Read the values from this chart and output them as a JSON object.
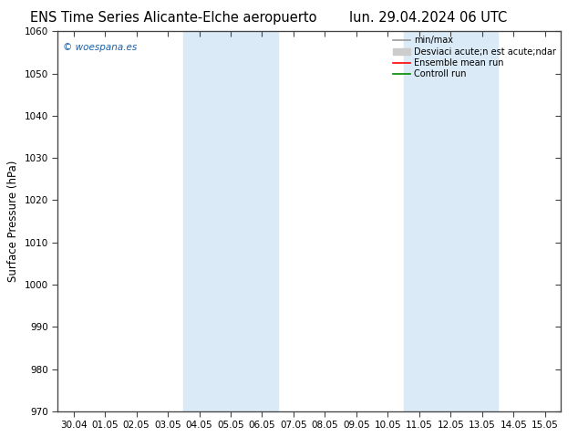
{
  "title_left": "ENS Time Series Alicante-Elche aeropuerto",
  "title_right": "lun. 29.04.2024 06 UTC",
  "ylabel": "Surface Pressure (hPa)",
  "ylim": [
    970,
    1060
  ],
  "yticks": [
    970,
    980,
    990,
    1000,
    1010,
    1020,
    1030,
    1040,
    1050,
    1060
  ],
  "x_labels": [
    "30.04",
    "01.05",
    "02.05",
    "03.05",
    "04.05",
    "05.05",
    "06.05",
    "07.05",
    "08.05",
    "09.05",
    "10.05",
    "11.05",
    "12.05",
    "13.05",
    "14.05",
    "15.05"
  ],
  "shaded_bands": [
    {
      "xstart": 4,
      "xend": 5
    },
    {
      "xstart": 5,
      "xend": 6
    },
    {
      "xstart": 11,
      "xend": 12
    },
    {
      "xstart": 12,
      "xend": 13
    }
  ],
  "shade_color": "#daeaf7",
  "watermark": "© woespana.es",
  "watermark_color": "#1a5fa8",
  "background_color": "#ffffff",
  "legend_label_minmax": "min/max",
  "legend_label_std": "Desviaci acute;n est acute;ndar",
  "legend_label_ens": "Ensemble mean run",
  "legend_label_ctrl": "Controll run",
  "legend_color_minmax": "#999999",
  "legend_color_std": "#cccccc",
  "legend_color_ens": "#ff0000",
  "legend_color_ctrl": "#008800",
  "title_fontsize": 10.5,
  "tick_fontsize": 7.5,
  "ylabel_fontsize": 8.5,
  "spine_color": "#444444"
}
